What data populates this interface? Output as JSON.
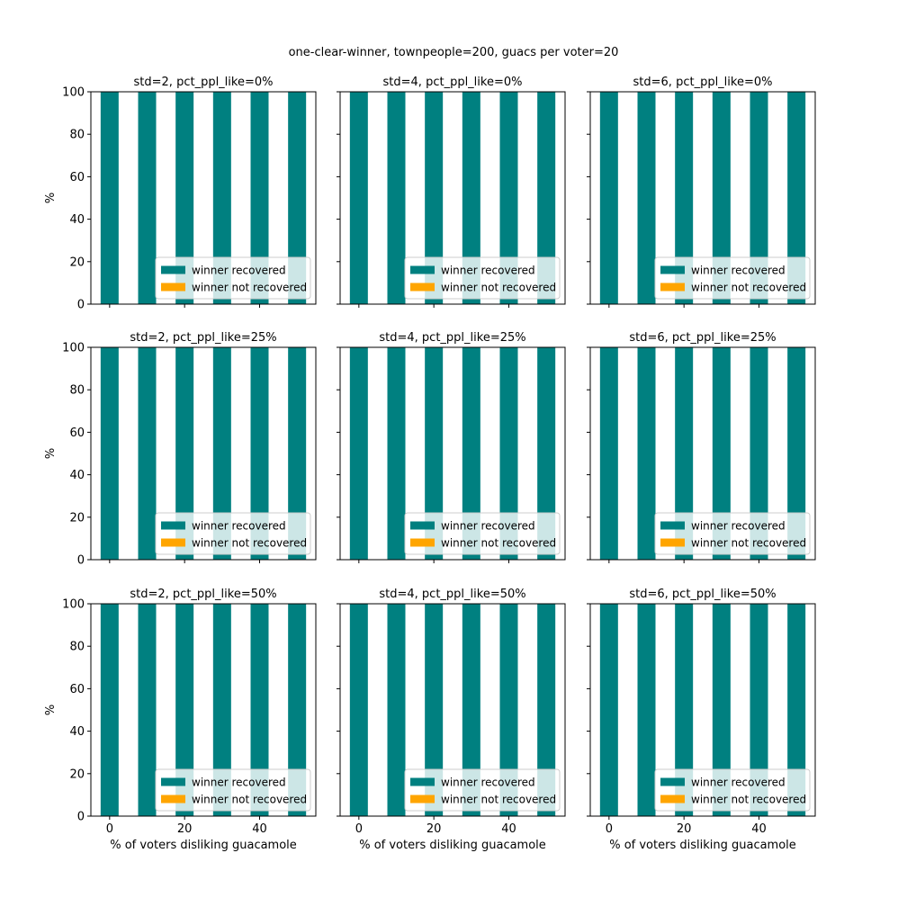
{
  "figure_title": "one-clear-winner, townpeople=200, guacs per voter=20",
  "colors": {
    "recovered": "#008080",
    "not_recovered": "#FFA500",
    "axes": "#000000",
    "background": "#ffffff"
  },
  "legend": {
    "placement": "lower right",
    "entries": [
      "winner recovered",
      "winner not recovered"
    ]
  },
  "chart_data": [
    {
      "type": "bar",
      "stacked": true,
      "title": "std=2, pct_ppl_like=0%",
      "xlabel": "",
      "ylabel": "%",
      "x": [
        0,
        10,
        20,
        30,
        40,
        50
      ],
      "xticks": [
        "0",
        "20",
        "40"
      ],
      "yticks": [
        "0",
        "20",
        "40",
        "60",
        "80",
        "100"
      ],
      "ylim": [
        0,
        100
      ],
      "xlim": [
        -5,
        55
      ],
      "grid": false,
      "series": [
        {
          "name": "winner recovered",
          "values": [
            100,
            100,
            100,
            100,
            100,
            100
          ]
        },
        {
          "name": "winner not recovered",
          "values": [
            0,
            0,
            0,
            0,
            0,
            0
          ]
        }
      ]
    },
    {
      "type": "bar",
      "stacked": true,
      "title": "std=4, pct_ppl_like=0%",
      "xlabel": "",
      "ylabel": "",
      "x": [
        0,
        10,
        20,
        30,
        40,
        50
      ],
      "xticks": [
        "0",
        "20",
        "40"
      ],
      "yticks": [
        "0",
        "20",
        "40",
        "60",
        "80",
        "100"
      ],
      "ylim": [
        0,
        100
      ],
      "xlim": [
        -5,
        55
      ],
      "grid": false,
      "series": [
        {
          "name": "winner recovered",
          "values": [
            100,
            100,
            100,
            100,
            100,
            100
          ]
        },
        {
          "name": "winner not recovered",
          "values": [
            0,
            0,
            0,
            0,
            0,
            0
          ]
        }
      ]
    },
    {
      "type": "bar",
      "stacked": true,
      "title": "std=6, pct_ppl_like=0%",
      "xlabel": "",
      "ylabel": "",
      "x": [
        0,
        10,
        20,
        30,
        40,
        50
      ],
      "xticks": [
        "0",
        "20",
        "40"
      ],
      "yticks": [
        "0",
        "20",
        "40",
        "60",
        "80",
        "100"
      ],
      "ylim": [
        0,
        100
      ],
      "xlim": [
        -5,
        55
      ],
      "grid": false,
      "series": [
        {
          "name": "winner recovered",
          "values": [
            100,
            100,
            100,
            100,
            100,
            100
          ]
        },
        {
          "name": "winner not recovered",
          "values": [
            0,
            0,
            0,
            0,
            0,
            0
          ]
        }
      ]
    },
    {
      "type": "bar",
      "stacked": true,
      "title": "std=2, pct_ppl_like=25%",
      "xlabel": "",
      "ylabel": "%",
      "x": [
        0,
        10,
        20,
        30,
        40,
        50
      ],
      "xticks": [
        "0",
        "20",
        "40"
      ],
      "yticks": [
        "0",
        "20",
        "40",
        "60",
        "80",
        "100"
      ],
      "ylim": [
        0,
        100
      ],
      "xlim": [
        -5,
        55
      ],
      "grid": false,
      "series": [
        {
          "name": "winner recovered",
          "values": [
            100,
            100,
            100,
            100,
            100,
            100
          ]
        },
        {
          "name": "winner not recovered",
          "values": [
            0,
            0,
            0,
            0,
            0,
            0
          ]
        }
      ]
    },
    {
      "type": "bar",
      "stacked": true,
      "title": "std=4, pct_ppl_like=25%",
      "xlabel": "",
      "ylabel": "",
      "x": [
        0,
        10,
        20,
        30,
        40,
        50
      ],
      "xticks": [
        "0",
        "20",
        "40"
      ],
      "yticks": [
        "0",
        "20",
        "40",
        "60",
        "80",
        "100"
      ],
      "ylim": [
        0,
        100
      ],
      "xlim": [
        -5,
        55
      ],
      "grid": false,
      "series": [
        {
          "name": "winner recovered",
          "values": [
            100,
            100,
            100,
            100,
            100,
            100
          ]
        },
        {
          "name": "winner not recovered",
          "values": [
            0,
            0,
            0,
            0,
            0,
            0
          ]
        }
      ]
    },
    {
      "type": "bar",
      "stacked": true,
      "title": "std=6, pct_ppl_like=25%",
      "xlabel": "",
      "ylabel": "",
      "x": [
        0,
        10,
        20,
        30,
        40,
        50
      ],
      "xticks": [
        "0",
        "20",
        "40"
      ],
      "yticks": [
        "0",
        "20",
        "40",
        "60",
        "80",
        "100"
      ],
      "ylim": [
        0,
        100
      ],
      "xlim": [
        -5,
        55
      ],
      "grid": false,
      "series": [
        {
          "name": "winner recovered",
          "values": [
            100,
            100,
            100,
            100,
            100,
            100
          ]
        },
        {
          "name": "winner not recovered",
          "values": [
            0,
            0,
            0,
            0,
            0,
            0
          ]
        }
      ]
    },
    {
      "type": "bar",
      "stacked": true,
      "title": "std=2, pct_ppl_like=50%",
      "xlabel": "% of voters disliking guacamole",
      "ylabel": "%",
      "x": [
        0,
        10,
        20,
        30,
        40,
        50
      ],
      "xticks": [
        "0",
        "20",
        "40"
      ],
      "yticks": [
        "0",
        "20",
        "40",
        "60",
        "80",
        "100"
      ],
      "ylim": [
        0,
        100
      ],
      "xlim": [
        -5,
        55
      ],
      "grid": false,
      "series": [
        {
          "name": "winner recovered",
          "values": [
            100,
            100,
            100,
            100,
            100,
            100
          ]
        },
        {
          "name": "winner not recovered",
          "values": [
            0,
            0,
            0,
            0,
            0,
            0
          ]
        }
      ]
    },
    {
      "type": "bar",
      "stacked": true,
      "title": "std=4, pct_ppl_like=50%",
      "xlabel": "% of voters disliking guacamole",
      "ylabel": "",
      "x": [
        0,
        10,
        20,
        30,
        40,
        50
      ],
      "xticks": [
        "0",
        "20",
        "40"
      ],
      "yticks": [
        "0",
        "20",
        "40",
        "60",
        "80",
        "100"
      ],
      "ylim": [
        0,
        100
      ],
      "xlim": [
        -5,
        55
      ],
      "grid": false,
      "series": [
        {
          "name": "winner recovered",
          "values": [
            100,
            100,
            100,
            100,
            100,
            100
          ]
        },
        {
          "name": "winner not recovered",
          "values": [
            0,
            0,
            0,
            0,
            0,
            0
          ]
        }
      ]
    },
    {
      "type": "bar",
      "stacked": true,
      "title": "std=6, pct_ppl_like=50%",
      "xlabel": "% of voters disliking guacamole",
      "ylabel": "",
      "x": [
        0,
        10,
        20,
        30,
        40,
        50
      ],
      "xticks": [
        "0",
        "20",
        "40"
      ],
      "yticks": [
        "0",
        "20",
        "40",
        "60",
        "80",
        "100"
      ],
      "ylim": [
        0,
        100
      ],
      "xlim": [
        -5,
        55
      ],
      "grid": false,
      "series": [
        {
          "name": "winner recovered",
          "values": [
            100,
            100,
            100,
            100,
            100,
            100
          ]
        },
        {
          "name": "winner not recovered",
          "values": [
            0,
            0,
            0,
            0,
            0,
            0
          ]
        }
      ]
    }
  ]
}
